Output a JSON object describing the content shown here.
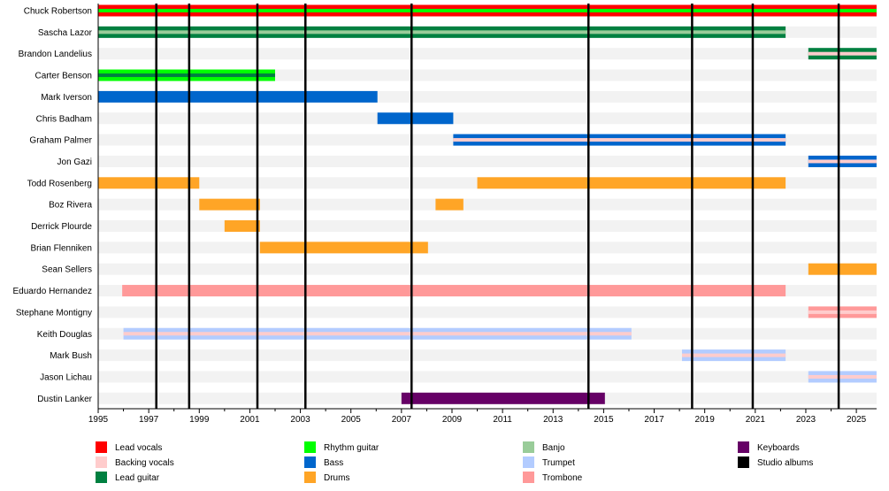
{
  "chart_data": {
    "type": "timeline",
    "xlim": [
      1995,
      2025.8
    ],
    "x_ticks": [
      1995,
      1997,
      1999,
      2001,
      2003,
      2005,
      2007,
      2009,
      2011,
      2013,
      2015,
      2017,
      2019,
      2021,
      2023,
      2025
    ],
    "members": [
      {
        "name": "Chuck Robertson",
        "bars": [
          {
            "start": 1995,
            "end": 2025.8,
            "role": "Lead vocals",
            "stripe": "Rhythm guitar"
          }
        ]
      },
      {
        "name": "Sascha Lazor",
        "bars": [
          {
            "start": 1995,
            "end": 2022.2,
            "role": "Lead guitar",
            "stripe": "Banjo"
          }
        ]
      },
      {
        "name": "Brandon Landelius",
        "bars": [
          {
            "start": 2023.1,
            "end": 2025.8,
            "role": "Lead guitar",
            "stripe": "Backing vocals"
          }
        ]
      },
      {
        "name": "Carter Benson",
        "bars": [
          {
            "start": 1995,
            "end": 2002,
            "role": "Rhythm guitar",
            "stripe": "Lead guitar"
          }
        ]
      },
      {
        "name": "Mark Iverson",
        "bars": [
          {
            "start": 1995,
            "end": 2006.05,
            "role": "Bass"
          }
        ]
      },
      {
        "name": "Chris Badham",
        "bars": [
          {
            "start": 2006.05,
            "end": 2009.05,
            "role": "Bass"
          }
        ]
      },
      {
        "name": "Graham Palmer",
        "bars": [
          {
            "start": 2009.05,
            "end": 2022.2,
            "role": "Bass",
            "stripe": "Backing vocals"
          }
        ]
      },
      {
        "name": "Jon Gazi",
        "bars": [
          {
            "start": 2023.1,
            "end": 2025.8,
            "role": "Bass",
            "stripe": "Backing vocals"
          }
        ]
      },
      {
        "name": "Todd Rosenberg",
        "bars": [
          {
            "start": 1995,
            "end": 1999,
            "role": "Drums"
          },
          {
            "start": 2010,
            "end": 2022.2,
            "role": "Drums"
          }
        ]
      },
      {
        "name": "Boz Rivera",
        "bars": [
          {
            "start": 1999,
            "end": 2001.4,
            "role": "Drums"
          },
          {
            "start": 2008.35,
            "end": 2009.45,
            "role": "Drums"
          }
        ]
      },
      {
        "name": "Derrick Plourde",
        "bars": [
          {
            "start": 2000,
            "end": 2001.4,
            "role": "Drums"
          }
        ]
      },
      {
        "name": "Brian Flenniken",
        "bars": [
          {
            "start": 2001.4,
            "end": 2008.05,
            "role": "Drums"
          }
        ]
      },
      {
        "name": "Sean Sellers",
        "bars": [
          {
            "start": 2023.1,
            "end": 2025.8,
            "role": "Drums"
          }
        ]
      },
      {
        "name": "Eduardo Hernandez",
        "bars": [
          {
            "start": 1995.95,
            "end": 2022.2,
            "role": "Trombone"
          }
        ]
      },
      {
        "name": "Stephane Montigny",
        "bars": [
          {
            "start": 2023.1,
            "end": 2025.8,
            "role": "Trombone",
            "stripe": "Backing vocals"
          }
        ]
      },
      {
        "name": "Keith Douglas",
        "bars": [
          {
            "start": 1996,
            "end": 2016.1,
            "role": "Trumpet",
            "stripe": "Backing vocals"
          }
        ]
      },
      {
        "name": "Mark Bush",
        "bars": [
          {
            "start": 2018.1,
            "end": 2022.2,
            "role": "Trumpet",
            "stripe": "Backing vocals"
          }
        ]
      },
      {
        "name": "Jason Lichau",
        "bars": [
          {
            "start": 2023.1,
            "end": 2025.8,
            "role": "Trumpet",
            "stripe": "Backing vocals"
          }
        ]
      },
      {
        "name": "Dustin Lanker",
        "bars": [
          {
            "start": 2007,
            "end": 2015.05,
            "role": "Keyboards"
          }
        ]
      }
    ],
    "studio_albums": [
      1997.3,
      1998.6,
      2001.3,
      2003.2,
      2007.4,
      2014.4,
      2018.5,
      2020.9,
      2024.3
    ],
    "legend": [
      {
        "label": "Lead vocals",
        "color": "#ff0000"
      },
      {
        "label": "Backing vocals",
        "color": "#ffcccc"
      },
      {
        "label": "Lead guitar",
        "color": "#008040"
      },
      {
        "label": "Rhythm guitar",
        "color": "#00ff00"
      },
      {
        "label": "Bass",
        "color": "#0066cc"
      },
      {
        "label": "Drums",
        "color": "#ffa526"
      },
      {
        "label": "Banjo",
        "color": "#99cc99"
      },
      {
        "label": "Trumpet",
        "color": "#b3ccff"
      },
      {
        "label": "Trombone",
        "color": "#ff9999"
      },
      {
        "label": "Keyboards",
        "color": "#660066"
      },
      {
        "label": "Studio albums",
        "color": "#000000"
      }
    ],
    "legend_placement": "bottom"
  }
}
